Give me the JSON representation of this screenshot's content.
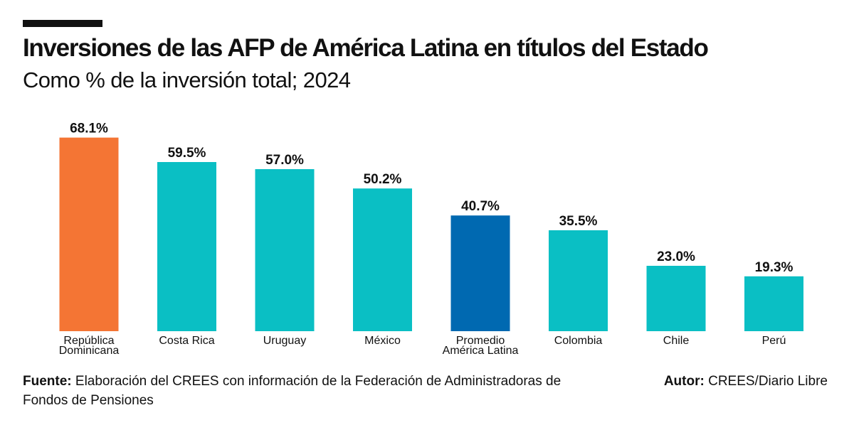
{
  "title": "Inversiones de las AFP de América Latina en títulos del Estado",
  "subtitle": "Como % de la inversión total; 2024",
  "colors": {
    "highlight": "#F47534",
    "average": "#0069B1",
    "default": "#0ABFC4"
  },
  "chart_data": {
    "type": "bar",
    "title": "Inversiones de las AFP de América Latina en títulos del Estado",
    "subtitle": "Como % de la inversión total; 2024",
    "xlabel": "",
    "ylabel": "",
    "ylim": [
      0,
      70
    ],
    "grid": false,
    "legend": "none",
    "categories": [
      "República Dominicana",
      "Costa Rica",
      "Uruguay",
      "México",
      "Promedio América Latina",
      "Colombia",
      "Chile",
      "Perú"
    ],
    "category_lines": [
      [
        "República",
        "Dominicana"
      ],
      [
        "Costa Rica"
      ],
      [
        "Uruguay"
      ],
      [
        "México"
      ],
      [
        "Promedio",
        "América Latina"
      ],
      [
        "Colombia"
      ],
      [
        "Chile"
      ],
      [
        "Perú"
      ]
    ],
    "values": [
      68.1,
      59.5,
      57.0,
      50.2,
      40.7,
      35.5,
      23.0,
      19.3
    ],
    "value_labels": [
      "68.1%",
      "59.5%",
      "57.0%",
      "50.2%",
      "40.7%",
      "35.5%",
      "23.0%",
      "19.3%"
    ],
    "bar_roles": [
      "highlight",
      "default",
      "default",
      "default",
      "average",
      "default",
      "default",
      "default"
    ]
  },
  "footer": {
    "source_label": "Fuente:",
    "source_text": "Elaboración del CREES con información de la Federación de Administradoras de Fondos de Pensiones",
    "author_label": "Autor:",
    "author_text": "CREES/Diario Libre"
  }
}
